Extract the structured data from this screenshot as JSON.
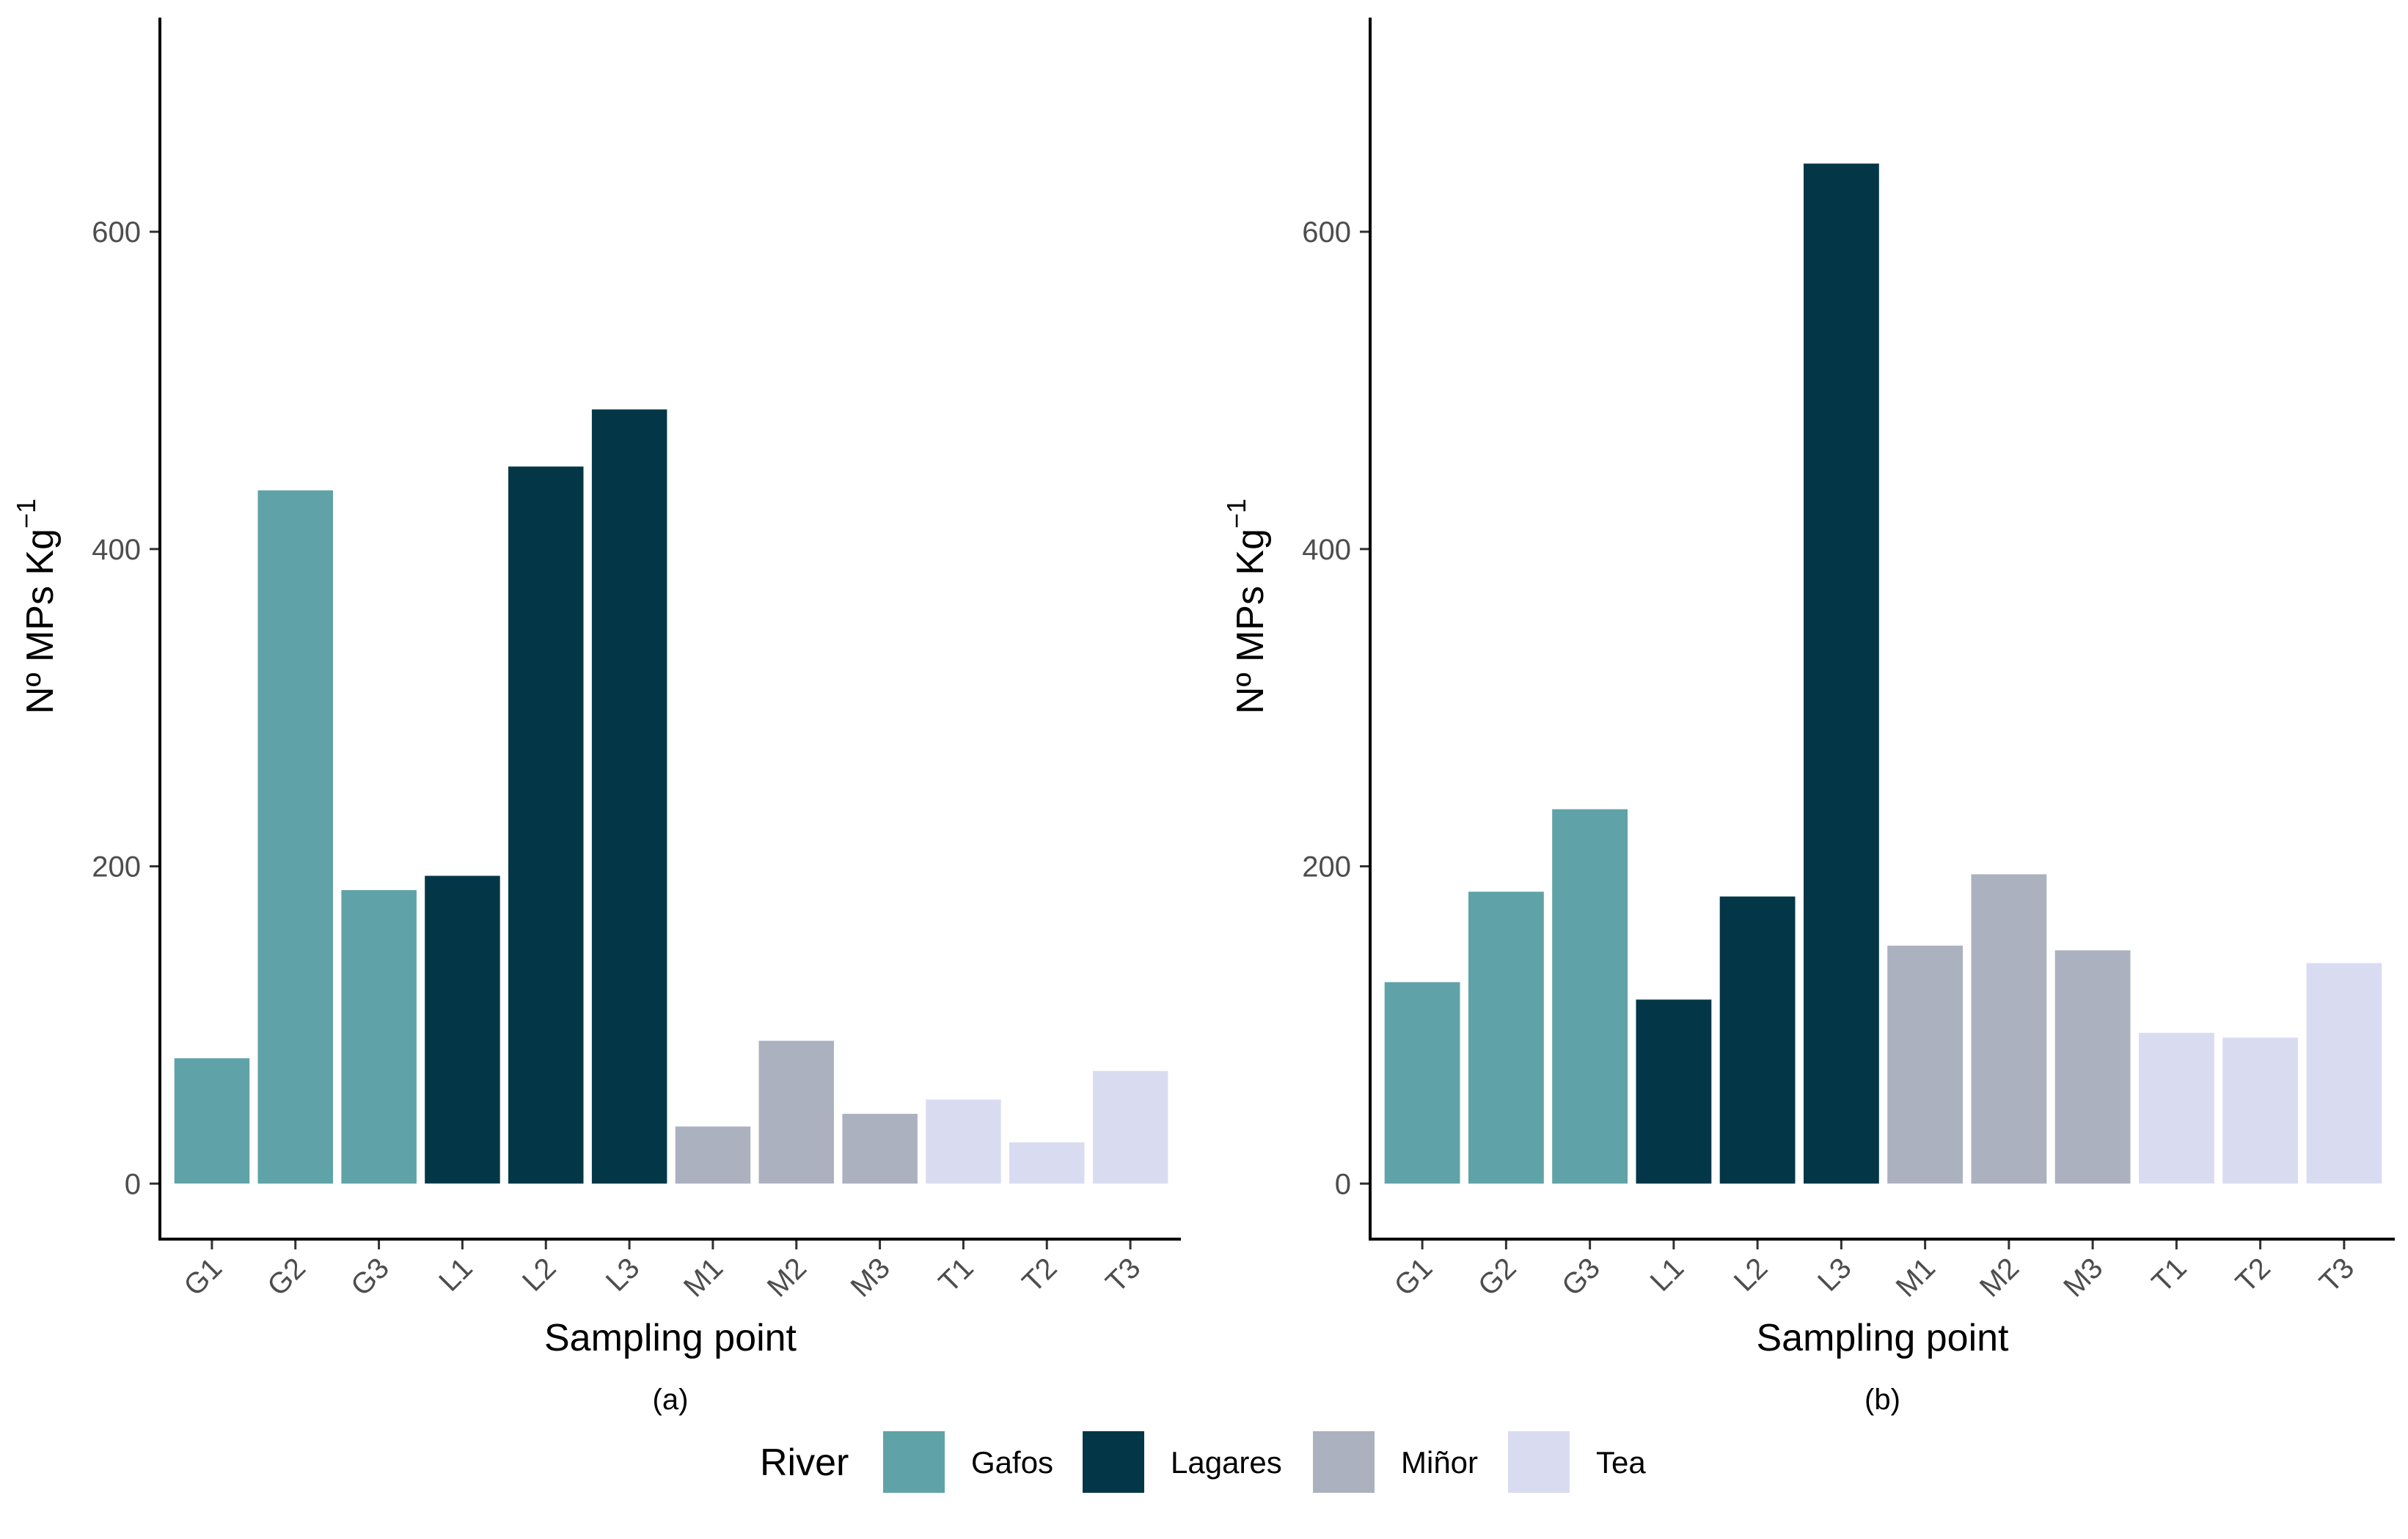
{
  "chart_data": [
    {
      "type": "bar",
      "panel_label": "(a)",
      "xlabel": "Sampling point",
      "ylabel": "Nº MPs Kg",
      "ylabel_superscript": "−1",
      "ylim": [
        -35,
        735
      ],
      "yticks": [
        0,
        200,
        400,
        600
      ],
      "grid": false,
      "categories": [
        "G1",
        "G2",
        "G3",
        "L1",
        "L2",
        "L3",
        "M1",
        "M2",
        "M3",
        "T1",
        "T2",
        "T3"
      ],
      "groups": [
        "Gafos",
        "Gafos",
        "Gafos",
        "Lagares",
        "Lagares",
        "Lagares",
        "Miñor",
        "Miñor",
        "Miñor",
        "Tea",
        "Tea",
        "Tea"
      ],
      "values": [
        79,
        437,
        185,
        194,
        452,
        488,
        36,
        90,
        44,
        53,
        26,
        71
      ]
    },
    {
      "type": "bar",
      "panel_label": "(b)",
      "xlabel": "Sampling point",
      "ylabel": "Nº MPs Kg",
      "ylabel_superscript": "−1",
      "ylim": [
        -35,
        735
      ],
      "yticks": [
        0,
        200,
        400,
        600
      ],
      "grid": false,
      "categories": [
        "G1",
        "G2",
        "G3",
        "L1",
        "L2",
        "L3",
        "M1",
        "M2",
        "M3",
        "T1",
        "T2",
        "T3"
      ],
      "groups": [
        "Gafos",
        "Gafos",
        "Gafos",
        "Lagares",
        "Lagares",
        "Lagares",
        "Miñor",
        "Miñor",
        "Miñor",
        "Tea",
        "Tea",
        "Tea"
      ],
      "values": [
        127,
        184,
        236,
        116,
        181,
        643,
        150,
        195,
        147,
        95,
        92,
        139
      ]
    }
  ],
  "legend": {
    "title": "River",
    "position": "bottom",
    "items": [
      {
        "label": "Gafos",
        "color": "#5fa3a8"
      },
      {
        "label": "Lagares",
        "color": "#033747"
      },
      {
        "label": "Miñor",
        "color": "#acb1c0"
      },
      {
        "label": "Tea",
        "color": "#d9dcf1"
      }
    ]
  }
}
